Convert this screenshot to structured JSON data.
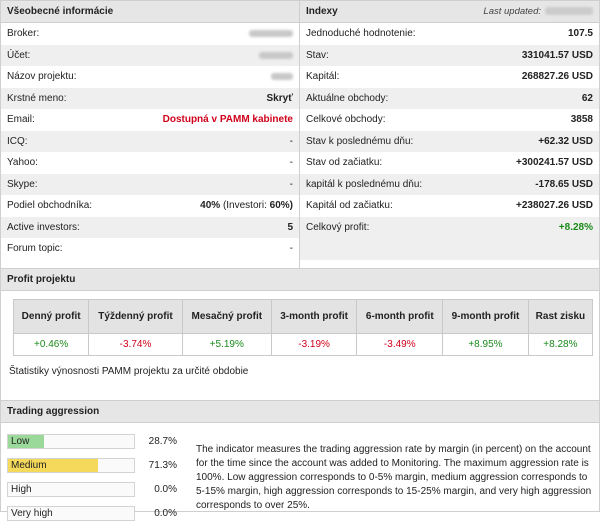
{
  "general": {
    "title": "Všeobecné informácie",
    "rows": [
      {
        "label": "Broker:",
        "value": ""
      },
      {
        "label": "Účet:",
        "value": ""
      },
      {
        "label": "Názov projektu:",
        "value": ""
      },
      {
        "label": "Krstné meno:",
        "value": "Skryť"
      },
      {
        "label": "Email:",
        "value": "Dostupná v PAMM kabinete"
      },
      {
        "label": "ICQ:",
        "value": "-"
      },
      {
        "label": "Yahoo:",
        "value": "-"
      },
      {
        "label": "Skype:",
        "value": "-"
      },
      {
        "label": "Podiel obchodníka:",
        "value_main": "40%",
        "value_sub": "(Investori:",
        "value_sub2": "60%)"
      },
      {
        "label": "Active investors:",
        "value": "5"
      },
      {
        "label": "Forum topic:",
        "value": "-"
      }
    ]
  },
  "index": {
    "title": "Indexy",
    "last_updated": "Last updated:",
    "rows": [
      {
        "label": "Jednoduché hodnotenie:",
        "value": "107.5"
      },
      {
        "label": "Stav:",
        "value": "331041.57 USD"
      },
      {
        "label": "Kapitál:",
        "value": "268827.26 USD"
      },
      {
        "label": "Aktuálne obchody:",
        "value": "62"
      },
      {
        "label": "Celkové obchody:",
        "value": "3858"
      },
      {
        "label": "Stav k poslednému dňu:",
        "value": "+62.32 USD"
      },
      {
        "label": "Stav od začiatku:",
        "value": "+300241.57 USD"
      },
      {
        "label": "kapitál k poslednému dňu:",
        "value": "-178.65 USD"
      },
      {
        "label": "Kapitál od začiatku:",
        "value": "+238027.26 USD"
      },
      {
        "label": "Celkový profit:",
        "value": "+8.28%"
      }
    ]
  },
  "profit": {
    "title": "Profit projektu",
    "headers": [
      "Denný profit",
      "Týždenný profit",
      "Mesačný profit",
      "3-month profit",
      "6-month profit",
      "9-month profit",
      "Rast zisku"
    ],
    "values": [
      "+0.46%",
      "-3.74%",
      "+5.19%",
      "-3.19%",
      "-3.49%",
      "+8.95%",
      "+8.28%"
    ],
    "note": "Štatistiky výnosnosti PAMM projektu za určité obdobie"
  },
  "aggression": {
    "title": "Trading aggression",
    "levels": [
      {
        "label": "Low",
        "percent": "28.7%",
        "fill": 0.287,
        "color": "#9bd99b"
      },
      {
        "label": "Medium",
        "percent": "71.3%",
        "fill": 0.713,
        "color": "#f5d95a"
      },
      {
        "label": "High",
        "percent": "0.0%",
        "fill": 0,
        "color": "#f0a060"
      },
      {
        "label": "Very high",
        "percent": "0.0%",
        "fill": 0,
        "color": "#e06060"
      }
    ],
    "description": "The indicator measures the trading aggression rate by margin (in percent) on the account for the time since the account was added to Monitoring. The maximum aggression rate is 100%. Low aggression corresponds to 0-5% margin, medium aggression corresponds to 5-15% margin, high aggression corresponds to 15-25% margin, and very high aggression corresponds to over 25%."
  }
}
